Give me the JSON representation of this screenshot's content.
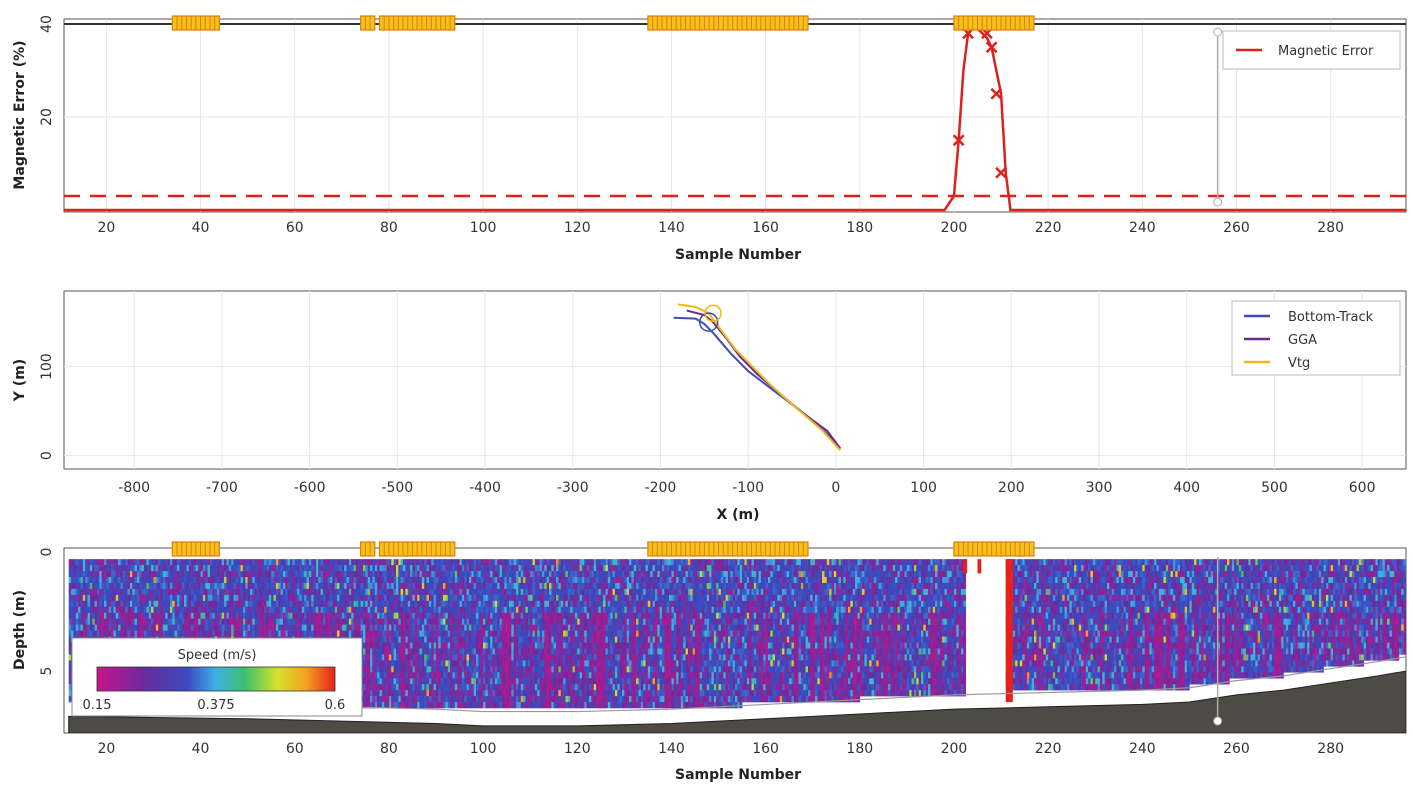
{
  "colors": {
    "magnetic_error": "#e0201b",
    "bottom_track": "#3c4fb4",
    "gga": "#6a2b8c",
    "vtg": "#f0b81a",
    "flag_fill": "#f5c21a",
    "flag_stroke": "#e07a10",
    "bottom": "#4e4b45"
  },
  "chart_data": [
    {
      "type": "line",
      "xlabel": "Sample Number",
      "ylabel": "Magnetic Error (%)",
      "x_ticks": [
        "20",
        "40",
        "60",
        "80",
        "100",
        "120",
        "140",
        "160",
        "180",
        "200",
        "220",
        "240",
        "260",
        "280"
      ],
      "y_ticks": [
        "20",
        "40"
      ],
      "xlim": [
        11,
        296
      ],
      "ylim": [
        0,
        40
      ],
      "grid": true,
      "legend": "top-right",
      "threshold": 3,
      "flag_ranges": [
        [
          34,
          44
        ],
        [
          74,
          77
        ],
        [
          78,
          94
        ],
        [
          135,
          169
        ],
        [
          200,
          217
        ]
      ],
      "series": [
        {
          "name": "Magnetic Error",
          "x": [
            11,
            198,
            200,
            201,
            202,
            203,
            204,
            205,
            206,
            207,
            208,
            209,
            210,
            211,
            212,
            296
          ],
          "y": [
            0,
            0,
            3,
            15,
            30,
            38,
            39,
            39,
            38,
            37,
            35,
            30,
            25,
            8,
            0,
            0
          ],
          "markers": [
            [
              201,
              15
            ],
            [
              203,
              38
            ],
            [
              207,
              38
            ],
            [
              208,
              35
            ],
            [
              209,
              25
            ],
            [
              210,
              8
            ]
          ]
        }
      ]
    },
    {
      "type": "line",
      "xlabel": "X (m)",
      "ylabel": "Y (m)",
      "x_ticks": [
        "-800",
        "-700",
        "-600",
        "-500",
        "-400",
        "-300",
        "-200",
        "-100",
        "0",
        "100",
        "200",
        "300",
        "400",
        "500",
        "600"
      ],
      "y_ticks": [
        "0",
        "100"
      ],
      "xlim": [
        -880,
        650
      ],
      "ylim": [
        -15,
        185
      ],
      "grid": true,
      "legend": "top-right",
      "series": [
        {
          "name": "Bottom-Track",
          "x": [
            -185,
            -160,
            -150,
            -140,
            -120,
            -100,
            -80,
            -60,
            -40,
            -20,
            5
          ],
          "y": [
            155,
            154,
            148,
            138,
            115,
            95,
            80,
            65,
            50,
            35,
            8
          ]
        },
        {
          "name": "GGA",
          "x": [
            -170,
            -150,
            -140,
            -125,
            -110,
            -90,
            -70,
            -50,
            -30,
            -10,
            5
          ],
          "y": [
            163,
            158,
            150,
            132,
            112,
            92,
            75,
            58,
            42,
            28,
            8
          ]
        },
        {
          "name": "Vtg",
          "x": [
            -180,
            -160,
            -145,
            -130,
            -115,
            -95,
            -75,
            -55,
            -35,
            -15,
            5
          ],
          "y": [
            170,
            167,
            160,
            140,
            120,
            100,
            80,
            62,
            45,
            28,
            6
          ]
        }
      ]
    },
    {
      "type": "heatmap",
      "xlabel": "Sample Number",
      "ylabel": "Depth (m)",
      "x_ticks": [
        "20",
        "40",
        "60",
        "80",
        "100",
        "120",
        "140",
        "160",
        "180",
        "200",
        "220",
        "240",
        "260",
        "280"
      ],
      "y_ticks": [
        "0",
        "5"
      ],
      "xlim": [
        11,
        296
      ],
      "ylim": [
        0,
        7.6
      ],
      "colorbar": {
        "title": "Speed (m/s)",
        "ticks": [
          "0.15",
          "0.375",
          "0.6"
        ],
        "min": 0.15,
        "max": 0.6
      },
      "flag_ranges": [
        [
          34,
          44
        ],
        [
          74,
          77
        ],
        [
          78,
          94
        ],
        [
          135,
          169
        ],
        [
          200,
          217
        ]
      ],
      "bottom_profile": {
        "x": [
          12,
          30,
          50,
          70,
          90,
          100,
          120,
          140,
          160,
          170,
          180,
          200,
          220,
          240,
          250,
          260,
          270,
          280,
          290,
          296
        ],
        "depth": [
          6.9,
          6.95,
          7.0,
          7.1,
          7.2,
          7.3,
          7.3,
          7.2,
          7.0,
          6.9,
          6.8,
          6.6,
          6.5,
          6.4,
          6.3,
          6.0,
          5.8,
          5.5,
          5.2,
          5.0
        ]
      }
    }
  ]
}
